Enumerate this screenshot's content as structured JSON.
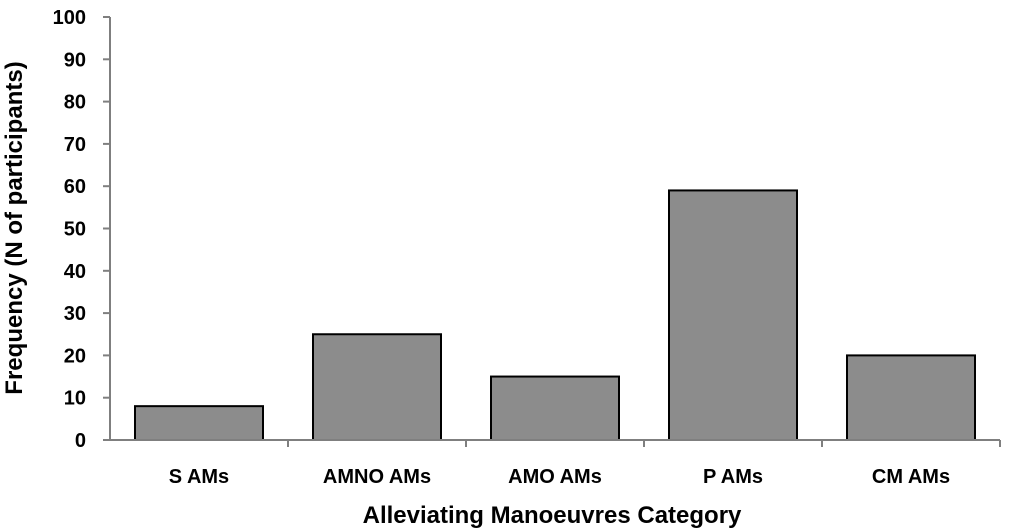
{
  "chart_data": {
    "type": "bar",
    "title": "",
    "xlabel": "Alleviating Manoeuvres Category",
    "ylabel": "Frequency (N of participants)",
    "categories": [
      "S AMs",
      "AMNO AMs",
      "AMO AMs",
      "P AMs",
      "CM AMs"
    ],
    "values": [
      8,
      25,
      15,
      59,
      20
    ],
    "ylim": [
      0,
      100
    ],
    "yticks": [
      "0",
      "10",
      "20",
      "30",
      "40",
      "50",
      "60",
      "70",
      "80",
      "90",
      "100"
    ],
    "grid": false,
    "legend": "none",
    "bar_color": "#8c8c8c",
    "bar_edge_color": "#000000"
  }
}
